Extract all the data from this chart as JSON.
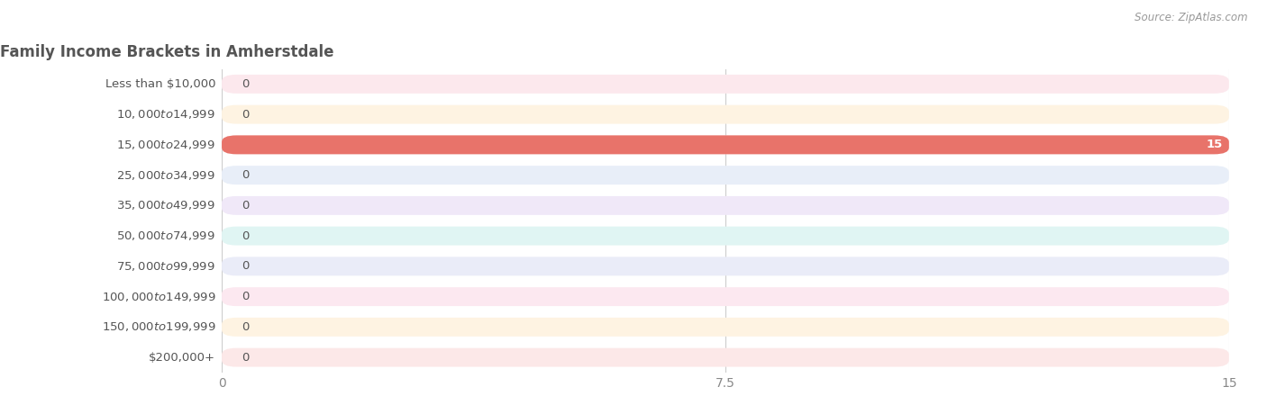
{
  "title": "Family Income Brackets in Amherstdale",
  "source": "Source: ZipAtlas.com",
  "categories": [
    "Less than $10,000",
    "$10,000 to $14,999",
    "$15,000 to $24,999",
    "$25,000 to $34,999",
    "$35,000 to $49,999",
    "$50,000 to $74,999",
    "$75,000 to $99,999",
    "$100,000 to $149,999",
    "$150,000 to $199,999",
    "$200,000+"
  ],
  "values": [
    0,
    0,
    15,
    0,
    0,
    0,
    0,
    0,
    0,
    0
  ],
  "bar_colors": [
    "#f0919f",
    "#f9c98a",
    "#e8736a",
    "#a8bcd8",
    "#c9a8d8",
    "#6ec8be",
    "#b0b8e8",
    "#f8a0b8",
    "#f9c98a",
    "#f4a8a8"
  ],
  "bg_colors": [
    "#fce8ed",
    "#fef3e2",
    "#fce8e8",
    "#e8eef8",
    "#f0e8f8",
    "#e0f5f3",
    "#eaecf8",
    "#fce8f0",
    "#fef3e2",
    "#fce8e8"
  ],
  "xlim": [
    0,
    15
  ],
  "xticks": [
    0,
    7.5,
    15
  ],
  "background_color": "#ffffff",
  "bar_height": 0.62,
  "title_fontsize": 12,
  "label_fontsize": 9.5,
  "tick_fontsize": 10,
  "title_color": "#555555",
  "label_color": "#555555",
  "tick_color": "#888888"
}
